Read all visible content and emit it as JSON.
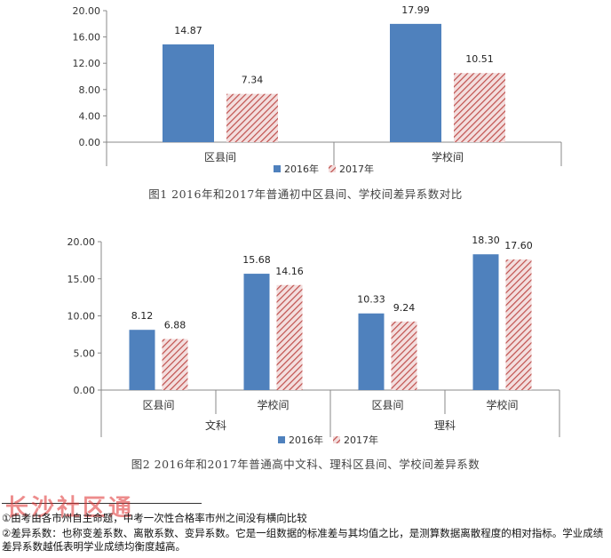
{
  "chart_data": [
    {
      "type": "bar",
      "categories": [
        "区县间",
        "学校间"
      ],
      "series": [
        {
          "name": "2016年",
          "values": [
            14.87,
            17.99
          ],
          "color": "#4f81bd",
          "pattern": "solid"
        },
        {
          "name": "2017年",
          "values": [
            7.34,
            10.51
          ],
          "color": "#c0504d",
          "pattern": "hatched"
        }
      ],
      "data_labels": [
        [
          "14.87",
          "17.99"
        ],
        [
          "7.34",
          "10.51"
        ]
      ],
      "ylim": [
        0,
        20
      ],
      "yticks": [
        "0.00",
        "4.00",
        "8.00",
        "12.00",
        "16.00",
        "20.00"
      ],
      "ytick_values": [
        0,
        4,
        8,
        12,
        16,
        20
      ],
      "legend_position": "bottom",
      "grid": false
    },
    {
      "type": "bar",
      "categories": [
        "区县间",
        "学校间",
        "区县间",
        "学校间"
      ],
      "groups": [
        "文科",
        "理科"
      ],
      "series": [
        {
          "name": "2016年",
          "values": [
            8.12,
            15.68,
            10.33,
            18.3
          ],
          "color": "#4f81bd",
          "pattern": "solid"
        },
        {
          "name": "2017年",
          "values": [
            6.88,
            14.16,
            9.24,
            17.6
          ],
          "color": "#c0504d",
          "pattern": "hatched"
        }
      ],
      "data_labels": [
        [
          "8.12",
          "15.68",
          "10.33",
          "18.30"
        ],
        [
          "6.88",
          "14.16",
          "9.24",
          "17.60"
        ]
      ],
      "ylim": [
        0,
        20
      ],
      "yticks": [
        "0.00",
        "5.00",
        "10.00",
        "15.00",
        "20.00"
      ],
      "ytick_values": [
        0,
        5,
        10,
        15,
        20
      ],
      "legend_position": "bottom",
      "grid": false
    }
  ],
  "captions": {
    "fig1": "图1  2016年和2017年普通初中区县间、学校间差异系数对比",
    "fig2": "图2   2016年和2017年普通高中文科、理科区县间、学校间差异系数"
  },
  "footnotes": {
    "fn1": "①由考由各市州自主命题，中考一次性合格率市州之间没有横向比较",
    "fn2": "②差异系数：也称变差系数、离散系数、变异系数。它是一组数据的标准差与其均值之比，是测算数据离散程度的相对指标。学业成绩差异系数越低表明学业成绩均衡度越高。"
  },
  "watermark": "长沙社区通"
}
